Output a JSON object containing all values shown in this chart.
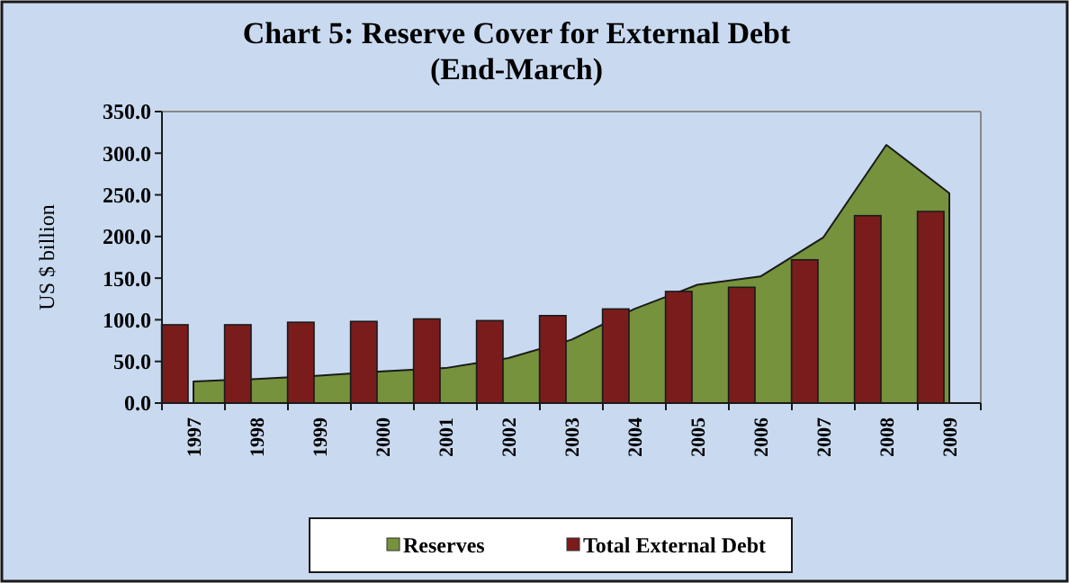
{
  "chart_data": {
    "type": "bar",
    "title": "Chart 5: Reserve Cover for External Debt",
    "subtitle": "(End-March)",
    "ylabel": "US $ billion",
    "categories": [
      "1997",
      "1998",
      "1999",
      "2000",
      "2001",
      "2002",
      "2003",
      "2004",
      "2005",
      "2006",
      "2007",
      "2008",
      "2009"
    ],
    "series": [
      {
        "name": "Reserves",
        "type": "area",
        "color": "#76923c",
        "values": [
          26,
          29,
          33,
          38,
          42,
          54,
          76,
          113,
          142,
          152,
          199,
          310,
          252
        ]
      },
      {
        "name": "Total External Debt",
        "color": "#7b1c1c",
        "values": [
          94,
          94,
          97,
          98,
          101,
          99,
          105,
          113,
          134,
          139,
          172,
          225,
          230
        ]
      }
    ],
    "ylim": [
      0,
      350
    ],
    "yticks": [
      {
        "value": 0,
        "label": "0.0"
      },
      {
        "value": 50,
        "label": "50.0"
      },
      {
        "value": 100,
        "label": "100.0"
      },
      {
        "value": 150,
        "label": "150.0"
      },
      {
        "value": 200,
        "label": "200.0"
      },
      {
        "value": 250,
        "label": "250.0"
      },
      {
        "value": 300,
        "label": "300.0"
      },
      {
        "value": 350,
        "label": "350.0"
      }
    ],
    "legend": "bottom"
  }
}
